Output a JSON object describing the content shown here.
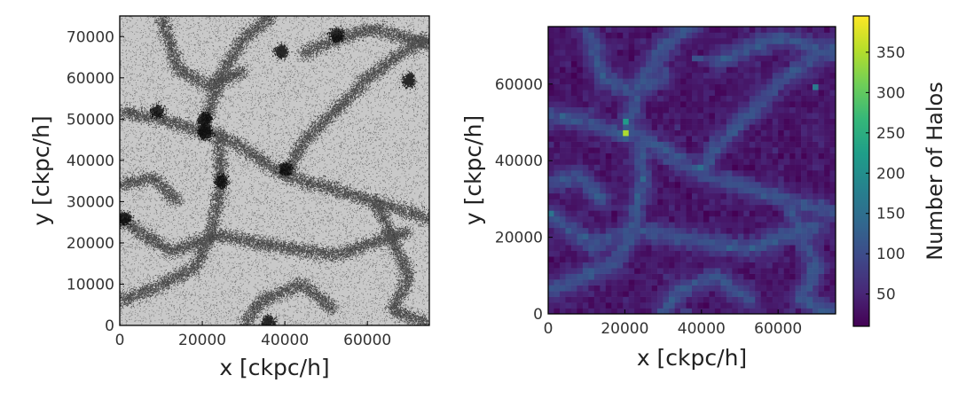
{
  "chart_data": [
    {
      "type": "scatter",
      "description_of_marks": "dense particle scatter showing cosmic web filaments",
      "xlabel": "x [ckpc/h]",
      "ylabel": "y [ckpc/h]",
      "xlim": [
        0,
        75000
      ],
      "ylim": [
        0,
        75000
      ],
      "xticks": [
        "0",
        "20000",
        "40000",
        "60000"
      ],
      "yticks": [
        "0",
        "10000",
        "20000",
        "30000",
        "40000",
        "50000",
        "60000",
        "70000"
      ],
      "colors": {
        "points": "#000000",
        "background": "#ffffff"
      },
      "filaments": [
        {
          "x": [
            0,
            10000,
            20000,
            24000,
            40000,
            62000,
            75000
          ],
          "y": [
            52000,
            50000,
            47000,
            46500,
            36500,
            30000,
            26000
          ]
        },
        {
          "x": [
            20000,
            24000,
            30000,
            37000
          ],
          "y": [
            47000,
            60000,
            70000,
            75000
          ]
        },
        {
          "x": [
            0,
            12000,
            24000,
            34000,
            52000,
            70000
          ],
          "y": [
            26000,
            18000,
            22000,
            20000,
            17000,
            23000
          ]
        },
        {
          "x": [
            24000,
            24500,
            22000,
            18000,
            8000,
            0
          ],
          "y": [
            46000,
            34000,
            22000,
            14000,
            9000,
            6000
          ]
        },
        {
          "x": [
            40000,
            44000,
            52000,
            60000,
            68000,
            75000
          ],
          "y": [
            36500,
            44000,
            52000,
            60000,
            66000,
            70000
          ]
        },
        {
          "x": [
            62000,
            70000,
            66000,
            75000
          ],
          "y": [
            30000,
            12000,
            4000,
            0
          ]
        },
        {
          "x": [
            30000,
            34000,
            44000,
            52000
          ],
          "y": [
            0,
            6000,
            10000,
            4000
          ]
        },
        {
          "x": [
            10000,
            14000,
            22000,
            30000
          ],
          "y": [
            75000,
            62000,
            58000,
            62000
          ]
        },
        {
          "x": [
            44000,
            54000,
            62000,
            75000
          ],
          "y": [
            66000,
            70000,
            72000,
            68000
          ]
        },
        {
          "x": [
            0,
            8000,
            14000
          ],
          "y": [
            34000,
            36000,
            30000
          ]
        }
      ]
    },
    {
      "type": "heatmap",
      "xlabel": "x [ckpc/h]",
      "ylabel": "y [ckpc/h]",
      "xlim": [
        0,
        75000
      ],
      "ylim": [
        0,
        75000
      ],
      "xticks": [
        "0",
        "20000",
        "40000",
        "60000"
      ],
      "yticks": [
        "0",
        "20000",
        "40000",
        "60000"
      ],
      "colorbar": {
        "label": "Number of Halos",
        "range": [
          10,
          395
        ],
        "ticks": [
          50,
          100,
          150,
          200,
          250,
          300,
          350
        ],
        "colormap": [
          "#440154",
          "#482878",
          "#3e4989",
          "#31688e",
          "#26828e",
          "#1f9e89",
          "#35b779",
          "#6ece58",
          "#b5de2b",
          "#fde725"
        ]
      },
      "bins": [
        50,
        50
      ],
      "hotspots": [
        {
          "x": 20500,
          "y": 47000,
          "value": 395
        },
        {
          "x": 20500,
          "y": 50000,
          "value": 250
        },
        {
          "x": 52500,
          "y": 70500,
          "value": 220
        },
        {
          "x": 39000,
          "y": 66500,
          "value": 200
        },
        {
          "x": 70000,
          "y": 59500,
          "value": 190
        },
        {
          "x": 1000,
          "y": 26000,
          "value": 180
        },
        {
          "x": 40000,
          "y": 38000,
          "value": 170
        },
        {
          "x": 36000,
          "y": 1000,
          "value": 160
        },
        {
          "x": 9000,
          "y": 52000,
          "value": 170
        },
        {
          "x": 24500,
          "y": 35000,
          "value": 160
        }
      ]
    }
  ]
}
